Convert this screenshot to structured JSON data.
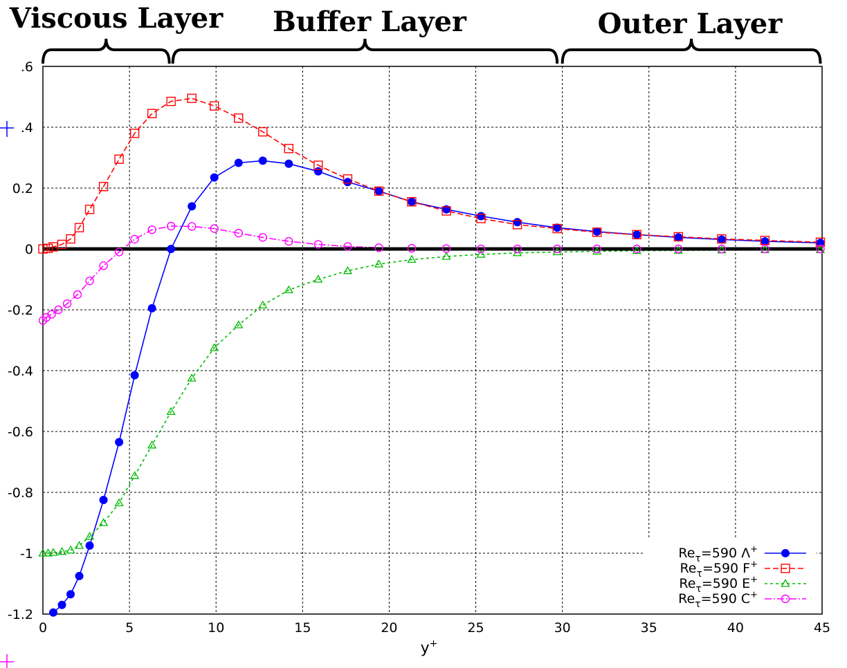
{
  "chart_data": {
    "type": "line",
    "title": "",
    "xlabel": "y",
    "xlabel_sup": "+",
    "ylabel": "",
    "xlim": [
      0,
      45
    ],
    "ylim": [
      -1.2,
      0.6
    ],
    "grid": true,
    "legend_position": "bottom-right",
    "x_ticks": [
      "0",
      "5",
      "10",
      "15",
      "20",
      "25",
      "30",
      "35",
      "40",
      "45"
    ],
    "y_ticks": [
      {
        "value": 0.6,
        "label": ".6"
      },
      {
        "value": 0.4,
        "label": ".4"
      },
      {
        "value": 0.2,
        "label": "0.2"
      },
      {
        "value": 0,
        "label": "0"
      },
      {
        "value": -0.2,
        "label": "-0.2"
      },
      {
        "value": -0.4,
        "label": "-0.4"
      },
      {
        "value": -0.6,
        "label": "-0.6"
      },
      {
        "value": -0.8,
        "label": "-0.8"
      },
      {
        "value": -1,
        "label": "-1"
      },
      {
        "value": -1.2,
        "label": "-1.2"
      }
    ],
    "layers": [
      {
        "label": "Viscous Layer",
        "x_start": 0,
        "x_end": 7.3
      },
      {
        "label": "Buffer Layer",
        "x_start": 7.5,
        "x_end": 29.7
      },
      {
        "label": "Outer Layer",
        "x_start": 30.0,
        "x_end": 44.9
      }
    ],
    "zero_line": {
      "y": 0,
      "color": "#000000"
    },
    "series": [
      {
        "name": "Reτ=590 Λ+",
        "legend": {
          "prefix": "Re",
          "sub": "τ",
          "mid": "=590 Λ",
          "sup": "+"
        },
        "color": "#0000ff",
        "marker": "filled-square-circle",
        "dash": "",
        "x": [
          0.6,
          1.1,
          1.6,
          2.1,
          2.7,
          3.5,
          4.4,
          5.3,
          6.3,
          7.4,
          8.6,
          9.9,
          11.3,
          12.7,
          14.2,
          15.9,
          17.6,
          19.4,
          21.3,
          23.3,
          25.3,
          27.4,
          29.7,
          32.0,
          34.3,
          36.7,
          39.2,
          41.7,
          44.9
        ],
        "y": [
          -1.195,
          -1.17,
          -1.135,
          -1.075,
          -0.975,
          -0.825,
          -0.635,
          -0.415,
          -0.195,
          0.0,
          0.14,
          0.235,
          0.283,
          0.29,
          0.28,
          0.255,
          0.22,
          0.19,
          0.155,
          0.13,
          0.108,
          0.088,
          0.07,
          0.057,
          0.047,
          0.038,
          0.031,
          0.025,
          0.02
        ]
      },
      {
        "name": "Reτ=590 F+",
        "legend": {
          "prefix": "Re",
          "sub": "τ",
          "mid": "=590 F",
          "sup": "+"
        },
        "color": "#ff0000",
        "marker": "open-square",
        "dash": "8,4",
        "x": [
          0.0,
          0.3,
          0.6,
          1.1,
          1.6,
          2.1,
          2.7,
          3.5,
          4.4,
          5.3,
          6.3,
          7.4,
          8.6,
          9.9,
          11.3,
          12.7,
          14.2,
          15.9,
          17.6,
          19.4,
          21.3,
          23.3,
          25.3,
          27.4,
          29.7,
          32.0,
          34.3,
          36.7,
          39.2,
          41.7,
          44.9
        ],
        "y": [
          0.0,
          0.002,
          0.007,
          0.015,
          0.033,
          0.07,
          0.13,
          0.205,
          0.295,
          0.38,
          0.445,
          0.485,
          0.495,
          0.47,
          0.43,
          0.385,
          0.33,
          0.275,
          0.23,
          0.19,
          0.155,
          0.125,
          0.1,
          0.08,
          0.067,
          0.055,
          0.047,
          0.04,
          0.033,
          0.028,
          0.022
        ]
      },
      {
        "name": "Reτ=590 E+",
        "legend": {
          "prefix": "Re",
          "sub": "τ",
          "mid": "=590 E",
          "sup": "+"
        },
        "color": "#00bb00",
        "marker": "open-triangle",
        "dash": "4,4",
        "x": [
          0.0,
          0.3,
          0.6,
          1.1,
          1.6,
          2.1,
          2.7,
          3.5,
          4.4,
          5.3,
          6.3,
          7.4,
          8.6,
          9.9,
          11.3,
          12.7,
          14.2,
          15.9,
          17.6,
          19.4,
          21.3,
          23.3,
          25.3,
          27.4,
          29.7,
          32.0,
          34.3,
          36.7,
          39.2,
          41.7,
          44.9
        ],
        "y": [
          -1.0,
          -1.0,
          -0.998,
          -0.995,
          -0.99,
          -0.975,
          -0.945,
          -0.9,
          -0.835,
          -0.745,
          -0.645,
          -0.535,
          -0.425,
          -0.325,
          -0.25,
          -0.185,
          -0.135,
          -0.1,
          -0.072,
          -0.05,
          -0.035,
          -0.025,
          -0.018,
          -0.013,
          -0.01,
          -0.008,
          -0.006,
          -0.005,
          -0.004,
          -0.003,
          -0.003
        ]
      },
      {
        "name": "Reτ=590 C+",
        "legend": {
          "prefix": "Re",
          "sub": "τ",
          "mid": "=590 C",
          "sup": "+"
        },
        "color": "#ff00ff",
        "marker": "open-circle",
        "dash": "10,3,2,3",
        "x": [
          0.0,
          0.2,
          0.5,
          0.9,
          1.4,
          2.0,
          2.7,
          3.5,
          4.4,
          5.3,
          6.3,
          7.4,
          8.6,
          9.9,
          11.3,
          12.7,
          14.2,
          15.9,
          17.6,
          19.4,
          21.3,
          23.3,
          25.3,
          27.4,
          29.7,
          32.0,
          34.3,
          36.7,
          39.2,
          41.7,
          44.9
        ],
        "y": [
          -0.235,
          -0.225,
          -0.215,
          -0.2,
          -0.18,
          -0.15,
          -0.105,
          -0.055,
          -0.01,
          0.032,
          0.063,
          0.075,
          0.074,
          0.067,
          0.052,
          0.038,
          0.025,
          0.015,
          0.008,
          0.004,
          0.002,
          0.001,
          0.0,
          0.0,
          0.0,
          0.0,
          0.0,
          0.0,
          0.0,
          0.0,
          0.0
        ]
      }
    ]
  }
}
